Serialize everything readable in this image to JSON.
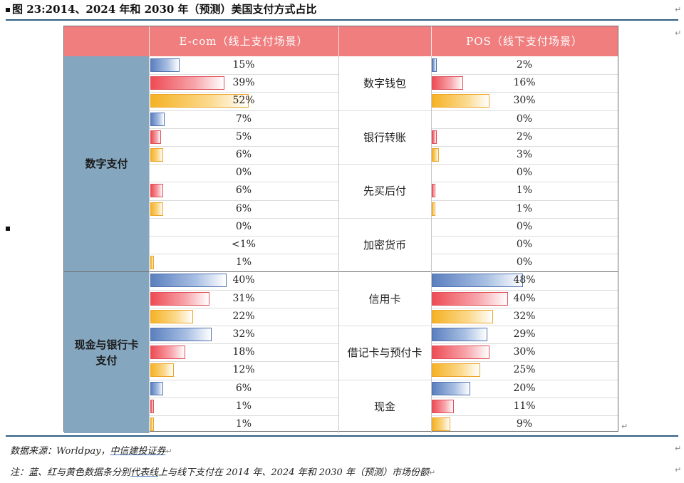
{
  "figure_title": "图 23:2014、2024 年和 2030 年（预测）美国支付方式占比",
  "source_note": {
    "prefix": "数据来源：Worldpay，",
    "linked": "中信建投证券"
  },
  "legend_note": {
    "before": "注：蓝、红与黄色数据条分别",
    "linked": "代表线",
    "after": "上与线下支付在 2014 年、2024 年和 2030 年（预测）市场份额"
  },
  "colors": {
    "blue": "#5b7fbf",
    "red": "#ee4b54",
    "yellow": "#f5b225",
    "header": "#f07e7f",
    "category": "#84a6bf"
  },
  "chart_data": {
    "type": "table",
    "columns": {
      "left": "E-com（线上支付场景）",
      "right": "POS（线下支付场景）"
    },
    "years": [
      "2014",
      "2024",
      "2030"
    ],
    "categories": [
      {
        "name": "数字支付",
        "methods": [
          0,
          1,
          2,
          3
        ]
      },
      {
        "name": "现金与银行卡\n支付",
        "methods": [
          4,
          5,
          6
        ]
      }
    ],
    "methods": [
      {
        "name": "数字钱包",
        "ecom": [
          {
            "v": 15,
            "t": "15%"
          },
          {
            "v": 39,
            "t": "39%"
          },
          {
            "v": 52,
            "t": "52%"
          }
        ],
        "pos": [
          {
            "v": 2,
            "t": "2%"
          },
          {
            "v": 16,
            "t": "16%"
          },
          {
            "v": 30,
            "t": "30%"
          }
        ]
      },
      {
        "name": "银行转账",
        "ecom": [
          {
            "v": 7,
            "t": "7%"
          },
          {
            "v": 5,
            "t": "5%"
          },
          {
            "v": 6,
            "t": "6%"
          }
        ],
        "pos": [
          {
            "v": 0,
            "t": "0%"
          },
          {
            "v": 2,
            "t": "2%"
          },
          {
            "v": 3,
            "t": "3%"
          }
        ]
      },
      {
        "name": "先买后付",
        "ecom": [
          {
            "v": 0,
            "t": "0%"
          },
          {
            "v": 6,
            "t": "6%"
          },
          {
            "v": 6,
            "t": "6%"
          }
        ],
        "pos": [
          {
            "v": 0,
            "t": "0%"
          },
          {
            "v": 1,
            "t": "1%"
          },
          {
            "v": 1,
            "t": "1%"
          }
        ]
      },
      {
        "name": "加密货币",
        "ecom": [
          {
            "v": 0,
            "t": "0%"
          },
          {
            "v": 0,
            "t": "<1%"
          },
          {
            "v": 1,
            "t": "1%"
          }
        ],
        "pos": [
          {
            "v": 0,
            "t": "0%"
          },
          {
            "v": 0,
            "t": "0%"
          },
          {
            "v": 0,
            "t": "0%"
          }
        ]
      },
      {
        "name": "信用卡",
        "ecom": [
          {
            "v": 40,
            "t": "40%"
          },
          {
            "v": 31,
            "t": "31%"
          },
          {
            "v": 22,
            "t": "22%"
          }
        ],
        "pos": [
          {
            "v": 48,
            "t": "48%"
          },
          {
            "v": 40,
            "t": "40%"
          },
          {
            "v": 32,
            "t": "32%"
          }
        ]
      },
      {
        "name": "借记卡与预付卡",
        "ecom": [
          {
            "v": 32,
            "t": "32%"
          },
          {
            "v": 18,
            "t": "18%"
          },
          {
            "v": 12,
            "t": "12%"
          }
        ],
        "pos": [
          {
            "v": 29,
            "t": "29%"
          },
          {
            "v": 30,
            "t": "30%"
          },
          {
            "v": 25,
            "t": "25%"
          }
        ]
      },
      {
        "name": "现金",
        "ecom": [
          {
            "v": 6,
            "t": "6%"
          },
          {
            "v": 1,
            "t": "1%"
          },
          {
            "v": 1,
            "t": "1%"
          }
        ],
        "pos": [
          {
            "v": 20,
            "t": "20%"
          },
          {
            "v": 11,
            "t": "11%"
          },
          {
            "v": 9,
            "t": "9%"
          }
        ]
      }
    ]
  }
}
